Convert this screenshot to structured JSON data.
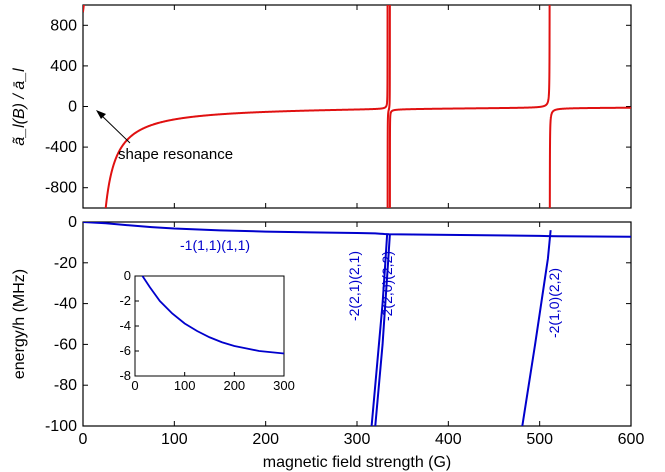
{
  "colors": {
    "top_curve": "#e01010",
    "bottom_curve": "#0000cc",
    "axis": "#000000"
  },
  "chart_data": [
    {
      "type": "line",
      "panel": "top",
      "xlim": [
        0,
        600
      ],
      "ylim": [
        -1000,
        1000
      ],
      "ylabel": "ã_l(B) / ā_l",
      "xticks": [
        0,
        100,
        200,
        300,
        400,
        500,
        600
      ],
      "yticks": [
        -800,
        -400,
        0,
        400,
        800
      ],
      "ytick_labels": [
        "-800",
        "-400",
        "0",
        "400",
        "800"
      ],
      "resonances": [
        {
          "B": 13,
          "width": 120
        },
        {
          "B": 333.5,
          "width": 0.35
        },
        {
          "B": 336,
          "width": 0.25
        },
        {
          "B": 511,
          "width": 1.2
        }
      ],
      "background": 10,
      "annotation": "shape resonance",
      "annotation_arrow_target": {
        "x": 12,
        "y": 210
      }
    },
    {
      "type": "line",
      "panel": "bottom",
      "xlim": [
        0,
        600
      ],
      "ylim": [
        -100,
        0
      ],
      "xlabel": "magnetic field strength (G)",
      "ylabel": "energy/h (MHz)",
      "xticks": [
        0,
        100,
        200,
        300,
        400,
        500,
        600
      ],
      "xtick_labels": [
        "0",
        "100",
        "200",
        "300",
        "400",
        "500",
        "600"
      ],
      "yticks": [
        -100,
        -80,
        -60,
        -40,
        -20,
        0
      ],
      "ytick_labels": [
        "-100",
        "-80",
        "-60",
        "-40",
        "-20",
        "0"
      ],
      "series": [
        {
          "name": "-1(1,1)(1,1)",
          "x": [
            0,
            25,
            50,
            75,
            100,
            150,
            200,
            250,
            300,
            320,
            330,
            335,
            400,
            500,
            510,
            520,
            600
          ],
          "y": [
            0,
            -0.6,
            -1.6,
            -2.5,
            -3.2,
            -4.1,
            -4.7,
            -5.1,
            -5.4,
            -5.6,
            -5.9,
            -6.0,
            -6.3,
            -6.8,
            -6.9,
            -7.0,
            -7.2
          ]
        },
        {
          "name": "-2(2,1)(2,1)",
          "x": [
            316,
            320,
            324,
            328,
            331,
            333
          ],
          "y": [
            -100,
            -80,
            -60,
            -40,
            -20,
            -6
          ]
        },
        {
          "name": "-2(2,0)(2,2)",
          "x": [
            320,
            324,
            328,
            331,
            334,
            336
          ],
          "y": [
            -100,
            -80,
            -60,
            -40,
            -20,
            -6
          ]
        },
        {
          "name": "-2(1,0)(2,2)",
          "x": [
            481,
            488,
            495,
            500,
            505,
            509,
            512
          ],
          "y": [
            -100,
            -80,
            -60,
            -45,
            -30,
            -18,
            -4
          ]
        }
      ],
      "inset": {
        "xlim": [
          0,
          300
        ],
        "ylim": [
          -8,
          0
        ],
        "xticks": [
          0,
          100,
          200,
          300
        ],
        "xtick_labels": [
          "0",
          "100",
          "200",
          "300"
        ],
        "yticks": [
          0,
          -2,
          -4,
          -6,
          -8
        ],
        "ytick_labels": [
          "0",
          "-2",
          "-4",
          "-6",
          "-8"
        ],
        "x": [
          15,
          30,
          50,
          75,
          100,
          125,
          150,
          175,
          200,
          225,
          250,
          275,
          300
        ],
        "y": [
          0,
          -0.9,
          -2.0,
          -3.0,
          -3.8,
          -4.4,
          -4.9,
          -5.3,
          -5.6,
          -5.8,
          -6.0,
          -6.1,
          -6.2
        ]
      }
    }
  ]
}
